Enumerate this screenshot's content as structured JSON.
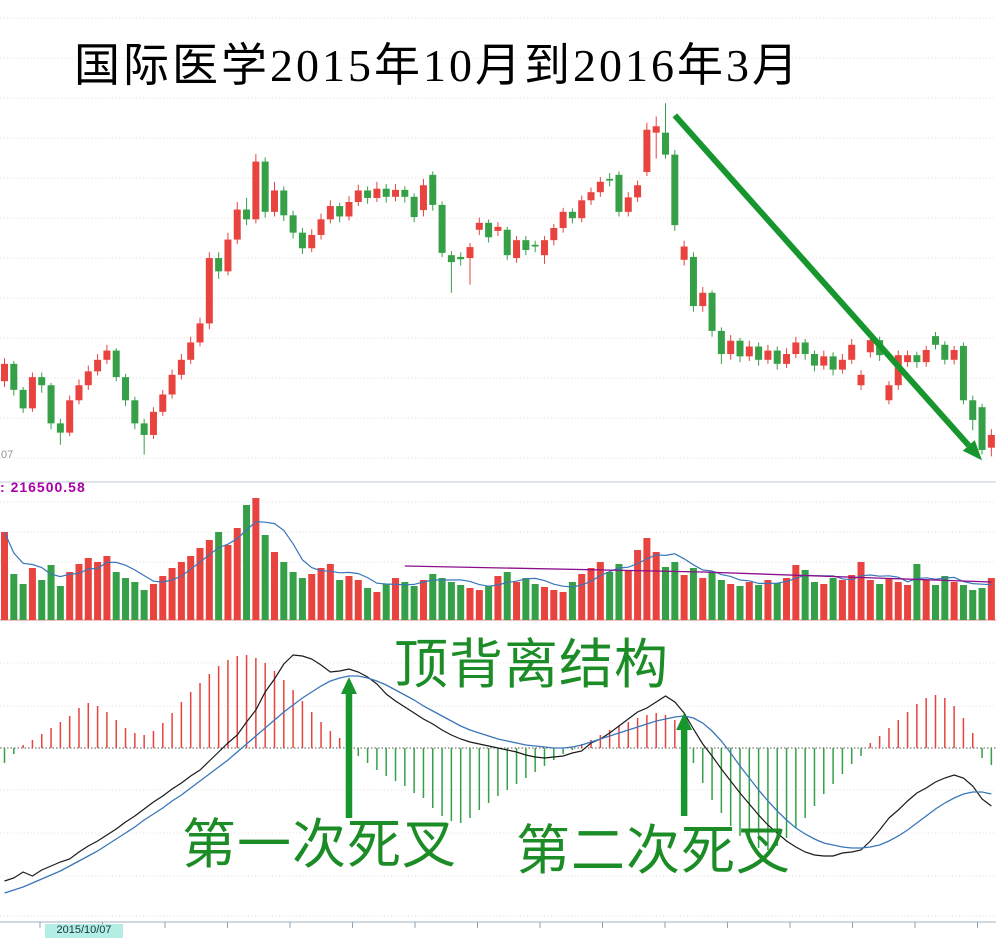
{
  "title": "国际医学2015年10月到2016年3月",
  "colors": {
    "up_red": "#e8433e",
    "down_green": "#35a047",
    "arrow_green": "#18962e",
    "annotation_green": "#1b8c26",
    "dif_line": "#1a1a1a",
    "dea_line": "#3a76b9",
    "volume_ma": "#3a76b9",
    "volume_ma_long": "#8b0e8b",
    "volume_label": "#aa00aa",
    "grid": "#e2dcdc",
    "zero_line": "#555555",
    "separator": "#c2cbd8",
    "vol_baseline": "#e59898",
    "axis_line": "#9fb0c0",
    "axis_tick": "#8aa0b4",
    "date_highlight_bg": "#b2eee4",
    "date_text": "#1a3340",
    "left_hint": "#949494",
    "title_color": "#000000"
  },
  "price_axis_hint": "07",
  "volume_label": {
    "prefix": ":",
    "value": "216500.58"
  },
  "date_axis": {
    "highlight_label": "2015/10/07"
  },
  "annotations": {
    "top_divergence": "顶背离结构",
    "first_death_cross": "第一次死叉",
    "second_death_cross": "第二次死叉"
  },
  "chart_data": [
    {
      "type": "candlestick",
      "name": "price-panel",
      "title": "国际医学2015年10月到2016年3月",
      "period": "2015-10 to 2016-03",
      "price_range": [
        6.8,
        13.2
      ],
      "grid": "dotted-horizontal",
      "candles": [
        [
          8.25,
          8.55,
          8.15,
          8.65
        ],
        [
          8.55,
          8.1,
          8.0,
          8.6
        ],
        [
          8.1,
          7.78,
          7.7,
          8.15
        ],
        [
          7.78,
          8.32,
          7.72,
          8.4
        ],
        [
          8.32,
          8.18,
          8.05,
          8.4
        ],
        [
          8.18,
          7.52,
          7.42,
          8.22
        ],
        [
          7.52,
          7.36,
          7.15,
          7.6
        ],
        [
          7.36,
          7.92,
          7.3,
          8.0
        ],
        [
          7.92,
          8.18,
          7.85,
          8.28
        ],
        [
          8.18,
          8.42,
          8.1,
          8.52
        ],
        [
          8.42,
          8.62,
          8.35,
          8.72
        ],
        [
          8.62,
          8.78,
          8.55,
          8.88
        ],
        [
          8.78,
          8.32,
          8.25,
          8.82
        ],
        [
          8.32,
          7.92,
          7.82,
          8.38
        ],
        [
          7.92,
          7.52,
          7.42,
          7.98
        ],
        [
          7.52,
          7.32,
          6.98,
          7.6
        ],
        [
          7.32,
          7.72,
          7.25,
          7.8
        ],
        [
          7.72,
          8.02,
          7.65,
          8.1
        ],
        [
          8.02,
          8.36,
          7.95,
          8.45
        ],
        [
          8.36,
          8.62,
          8.28,
          8.72
        ],
        [
          8.62,
          8.92,
          8.55,
          9.02
        ],
        [
          8.92,
          9.25,
          8.85,
          9.35
        ],
        [
          9.25,
          10.38,
          9.15,
          10.48
        ],
        [
          10.38,
          10.15,
          10.02,
          10.48
        ],
        [
          10.15,
          10.7,
          10.08,
          10.82
        ],
        [
          10.7,
          11.22,
          10.62,
          11.35
        ],
        [
          11.22,
          11.05,
          10.95,
          11.42
        ],
        [
          11.05,
          12.05,
          10.98,
          12.18
        ],
        [
          12.05,
          11.18,
          11.08,
          12.12
        ],
        [
          11.18,
          11.55,
          11.1,
          11.7
        ],
        [
          11.55,
          11.12,
          11.02,
          11.62
        ],
        [
          11.12,
          10.82,
          10.72,
          11.2
        ],
        [
          10.82,
          10.55,
          10.45,
          10.9
        ],
        [
          10.55,
          10.78,
          10.48,
          10.88
        ],
        [
          10.78,
          11.05,
          10.7,
          11.15
        ],
        [
          11.05,
          11.28,
          10.98,
          11.38
        ],
        [
          11.28,
          11.1,
          11.0,
          11.34
        ],
        [
          11.1,
          11.35,
          11.03,
          11.45
        ],
        [
          11.35,
          11.55,
          11.28,
          11.65
        ],
        [
          11.55,
          11.42,
          11.32,
          11.62
        ],
        [
          11.42,
          11.58,
          11.35,
          11.7
        ],
        [
          11.58,
          11.44,
          11.34,
          11.66
        ],
        [
          11.44,
          11.56,
          11.36,
          11.66
        ],
        [
          11.56,
          11.44,
          11.34,
          11.62
        ],
        [
          11.44,
          11.09,
          11.0,
          11.5
        ],
        [
          11.21,
          11.64,
          11.1,
          11.75
        ],
        [
          11.82,
          11.3,
          11.2,
          11.88
        ],
        [
          11.3,
          10.47,
          10.4,
          11.36
        ],
        [
          10.43,
          10.31,
          9.78,
          10.5
        ],
        [
          10.4,
          10.36,
          10.25,
          10.48
        ],
        [
          10.38,
          10.57,
          9.92,
          10.64
        ],
        [
          10.87,
          10.99,
          10.78,
          11.08
        ],
        [
          10.99,
          10.74,
          10.65,
          11.05
        ],
        [
          10.85,
          10.92,
          10.76,
          11.0
        ],
        [
          10.87,
          10.43,
          10.35,
          10.92
        ],
        [
          10.38,
          10.69,
          10.3,
          10.76
        ],
        [
          10.69,
          10.52,
          10.43,
          10.76
        ],
        [
          10.61,
          10.58,
          10.48,
          10.68
        ],
        [
          10.43,
          10.69,
          10.28,
          10.76
        ],
        [
          10.69,
          10.9,
          10.6,
          10.97
        ],
        [
          10.9,
          11.18,
          10.82,
          11.25
        ],
        [
          11.18,
          11.07,
          10.98,
          11.24
        ],
        [
          11.07,
          11.38,
          11.0,
          11.46
        ],
        [
          11.38,
          11.52,
          11.3,
          11.6
        ],
        [
          11.52,
          11.7,
          11.44,
          11.78
        ],
        [
          11.75,
          11.72,
          11.62,
          11.85
        ],
        [
          11.82,
          11.18,
          11.1,
          11.88
        ],
        [
          11.18,
          11.43,
          11.1,
          11.52
        ],
        [
          11.43,
          11.64,
          11.35,
          11.72
        ],
        [
          11.87,
          12.6,
          11.8,
          12.72
        ],
        [
          12.55,
          12.66,
          12.1,
          12.83
        ],
        [
          12.55,
          12.17,
          12.1,
          13.06
        ],
        [
          12.17,
          10.95,
          10.85,
          12.25
        ],
        [
          10.35,
          10.58,
          10.25,
          10.68
        ],
        [
          10.4,
          9.55,
          9.45,
          10.48
        ],
        [
          9.55,
          9.78,
          9.45,
          9.88
        ],
        [
          9.78,
          9.12,
          9.02,
          9.82
        ],
        [
          9.12,
          8.72,
          8.55,
          9.18
        ],
        [
          8.72,
          8.95,
          8.62,
          9.05
        ],
        [
          8.95,
          8.68,
          8.58,
          9.0
        ],
        [
          8.68,
          8.85,
          8.6,
          8.95
        ],
        [
          8.85,
          8.62,
          8.52,
          8.92
        ],
        [
          8.62,
          8.78,
          8.55,
          8.88
        ],
        [
          8.78,
          8.55,
          8.45,
          8.85
        ],
        [
          8.55,
          8.72,
          8.48,
          8.82
        ],
        [
          8.72,
          8.92,
          8.65,
          9.02
        ],
        [
          8.92,
          8.72,
          8.62,
          8.98
        ],
        [
          8.72,
          8.52,
          8.42,
          8.78
        ],
        [
          8.52,
          8.68,
          8.45,
          8.78
        ],
        [
          8.68,
          8.45,
          8.35,
          8.75
        ],
        [
          8.45,
          8.62,
          8.38,
          8.72
        ],
        [
          8.62,
          8.88,
          8.55,
          8.98
        ],
        [
          8.18,
          8.36,
          8.1,
          8.44
        ],
        [
          8.75,
          8.96,
          8.66,
          9.04
        ],
        [
          8.96,
          8.7,
          8.6,
          9.02
        ],
        [
          7.92,
          8.18,
          7.85,
          8.25
        ],
        [
          8.18,
          8.7,
          8.1,
          8.78
        ],
        [
          8.58,
          8.7,
          8.5,
          8.78
        ],
        [
          8.7,
          8.58,
          8.48,
          8.76
        ],
        [
          8.58,
          8.79,
          8.5,
          8.86
        ],
        [
          9.03,
          8.88,
          8.8,
          9.1
        ],
        [
          8.88,
          8.62,
          8.54,
          8.94
        ],
        [
          8.62,
          8.79,
          8.54,
          8.86
        ],
        [
          8.86,
          7.92,
          7.85,
          8.92
        ],
        [
          7.92,
          7.58,
          7.4,
          8.0
        ],
        [
          7.8,
          7.06,
          6.98,
          7.86
        ],
        [
          7.1,
          7.32,
          6.95,
          7.42
        ]
      ],
      "trend_arrow": {
        "from": [
          72,
          12.85
        ],
        "to": [
          105,
          6.88
        ],
        "meaning": "downtrend"
      }
    },
    {
      "type": "bar",
      "name": "volume-panel",
      "indicator_value": "216500.58",
      "volumes": [
        88,
        46,
        36,
        52,
        40,
        55,
        34,
        48,
        56,
        62,
        58,
        64,
        48,
        42,
        38,
        30,
        36,
        44,
        52,
        58,
        64,
        72,
        80,
        88,
        75,
        92,
        115,
        122,
        85,
        68,
        58,
        48,
        42,
        46,
        52,
        56,
        40,
        44,
        40,
        32,
        28,
        36,
        42,
        38,
        34,
        40,
        46,
        42,
        38,
        35,
        32,
        30,
        34,
        44,
        48,
        38,
        42,
        36,
        33,
        30,
        28,
        38,
        46,
        52,
        58,
        48,
        56,
        50,
        70,
        82,
        68,
        53,
        58,
        45,
        52,
        42,
        48,
        40,
        36,
        34,
        38,
        35,
        40,
        37,
        42,
        55,
        50,
        38,
        36,
        42,
        40,
        45,
        58,
        40,
        36,
        42,
        38,
        35,
        56,
        40,
        35,
        44,
        38,
        35,
        30,
        32,
        42
      ],
      "ma_short": "sma5",
      "ma_long_points": [
        [
          43,
          54
        ],
        [
          75,
          48
        ],
        [
          106,
          38
        ]
      ]
    },
    {
      "type": "macd",
      "name": "macd-panel",
      "histogram": [
        -15,
        -6,
        3,
        8,
        14,
        20,
        26,
        32,
        40,
        45,
        42,
        36,
        28,
        20,
        15,
        13,
        17,
        25,
        35,
        46,
        56,
        65,
        74,
        82,
        88,
        92,
        93,
        90,
        85,
        77,
        68,
        58,
        47,
        36,
        26,
        17,
        10,
        5,
        -8,
        -15,
        -22,
        -28,
        -33,
        -38,
        -45,
        -50,
        -60,
        -68,
        -73,
        -75,
        -70,
        -62,
        -55,
        -48,
        -42,
        -36,
        -30,
        -24,
        -18,
        -12,
        -6,
        -2,
        4,
        8,
        13,
        18,
        22,
        26,
        30,
        33,
        35,
        33,
        28,
        15,
        -15,
        -35,
        -52,
        -65,
        -78,
        -88,
        -95,
        -100,
        -102,
        -98,
        -90,
        -80,
        -70,
        -58,
        -46,
        -36,
        -26,
        -16,
        -8,
        5,
        12,
        20,
        28,
        36,
        44,
        50,
        53,
        50,
        42,
        30,
        15,
        -10,
        -17
      ],
      "dif": [
        -133,
        -130,
        -124,
        -128,
        -122,
        -118,
        -114,
        -111,
        -104,
        -98,
        -93,
        -87,
        -81,
        -74,
        -68,
        -61,
        -54,
        -48,
        -41,
        -35,
        -28,
        -22,
        -13,
        -4,
        5,
        13,
        26,
        38,
        56,
        69,
        84,
        93,
        92,
        89,
        83,
        76,
        77,
        79,
        76,
        71,
        64,
        54,
        47,
        41,
        35,
        29,
        24,
        18,
        13,
        9,
        6,
        4,
        2,
        0,
        -2,
        -4,
        -7,
        -9,
        -10,
        -9,
        -8,
        -5,
        -3,
        5,
        9,
        15,
        22,
        29,
        36,
        40,
        46,
        52,
        46,
        35,
        19,
        4,
        -8,
        -21,
        -33,
        -45,
        -56,
        -67,
        -77,
        -85,
        -93,
        -99,
        -104,
        -107,
        -108,
        -108,
        -105,
        -104,
        -102,
        -93,
        -82,
        -70,
        -62,
        -53,
        -45,
        -40,
        -34,
        -30,
        -27,
        -30,
        -38,
        -51,
        -58
      ],
      "dea": [
        -145,
        -142,
        -139,
        -135,
        -131,
        -127,
        -123,
        -118,
        -113,
        -108,
        -103,
        -97,
        -91,
        -85,
        -79,
        -72,
        -66,
        -60,
        -53,
        -47,
        -40,
        -33,
        -26,
        -19,
        -12,
        -4,
        4,
        12,
        20,
        28,
        36,
        43,
        50,
        56,
        62,
        67,
        70,
        72,
        72,
        70,
        67,
        63,
        58,
        53,
        48,
        42,
        37,
        32,
        27,
        22,
        18,
        15,
        12,
        9,
        7,
        5,
        3,
        2,
        1,
        0,
        0,
        1,
        3,
        6,
        9,
        12,
        15,
        18,
        21,
        24,
        27,
        29,
        31,
        32,
        30,
        25,
        17,
        7,
        -5,
        -18,
        -30,
        -42,
        -53,
        -63,
        -72,
        -80,
        -86,
        -91,
        -95,
        -97,
        -99,
        -100,
        -100,
        -99,
        -97,
        -93,
        -88,
        -82,
        -75,
        -68,
        -61,
        -55,
        -50,
        -46,
        -44,
        -44,
        -46
      ],
      "arrows": [
        {
          "index": 37,
          "from": -70,
          "tip": 71,
          "label": "第一次死叉"
        },
        {
          "index": 73,
          "from": -68,
          "tip": 35,
          "label": "第二次死叉"
        }
      ],
      "labels": [
        "顶背离结构",
        "第一次死叉",
        "第二次死叉"
      ]
    }
  ]
}
